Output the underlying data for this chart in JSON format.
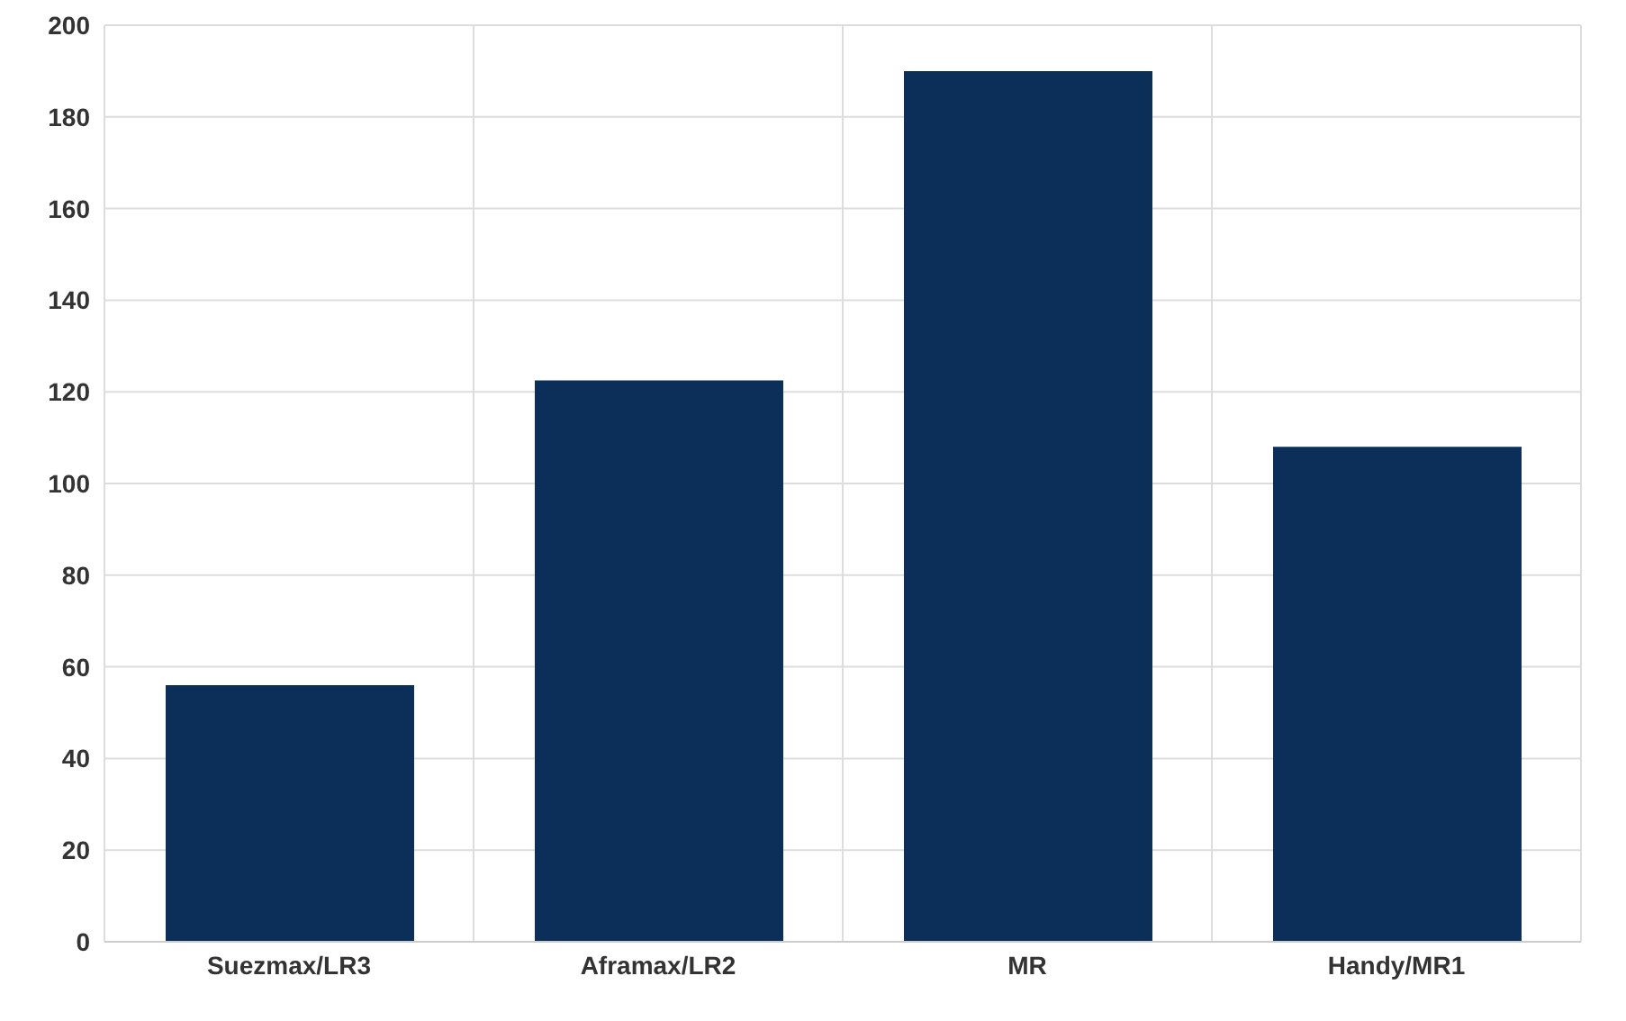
{
  "chart_data": {
    "type": "bar",
    "categories": [
      "Suezmax/LR3",
      "Aframax/LR2",
      "MR",
      "Handy/MR1"
    ],
    "values": [
      56,
      122.5,
      190,
      108
    ],
    "color": "#0b2f59",
    "ylim": [
      0,
      200
    ],
    "yticks": [
      0,
      20,
      40,
      60,
      80,
      100,
      120,
      140,
      160,
      180,
      200
    ],
    "grid": true
  }
}
